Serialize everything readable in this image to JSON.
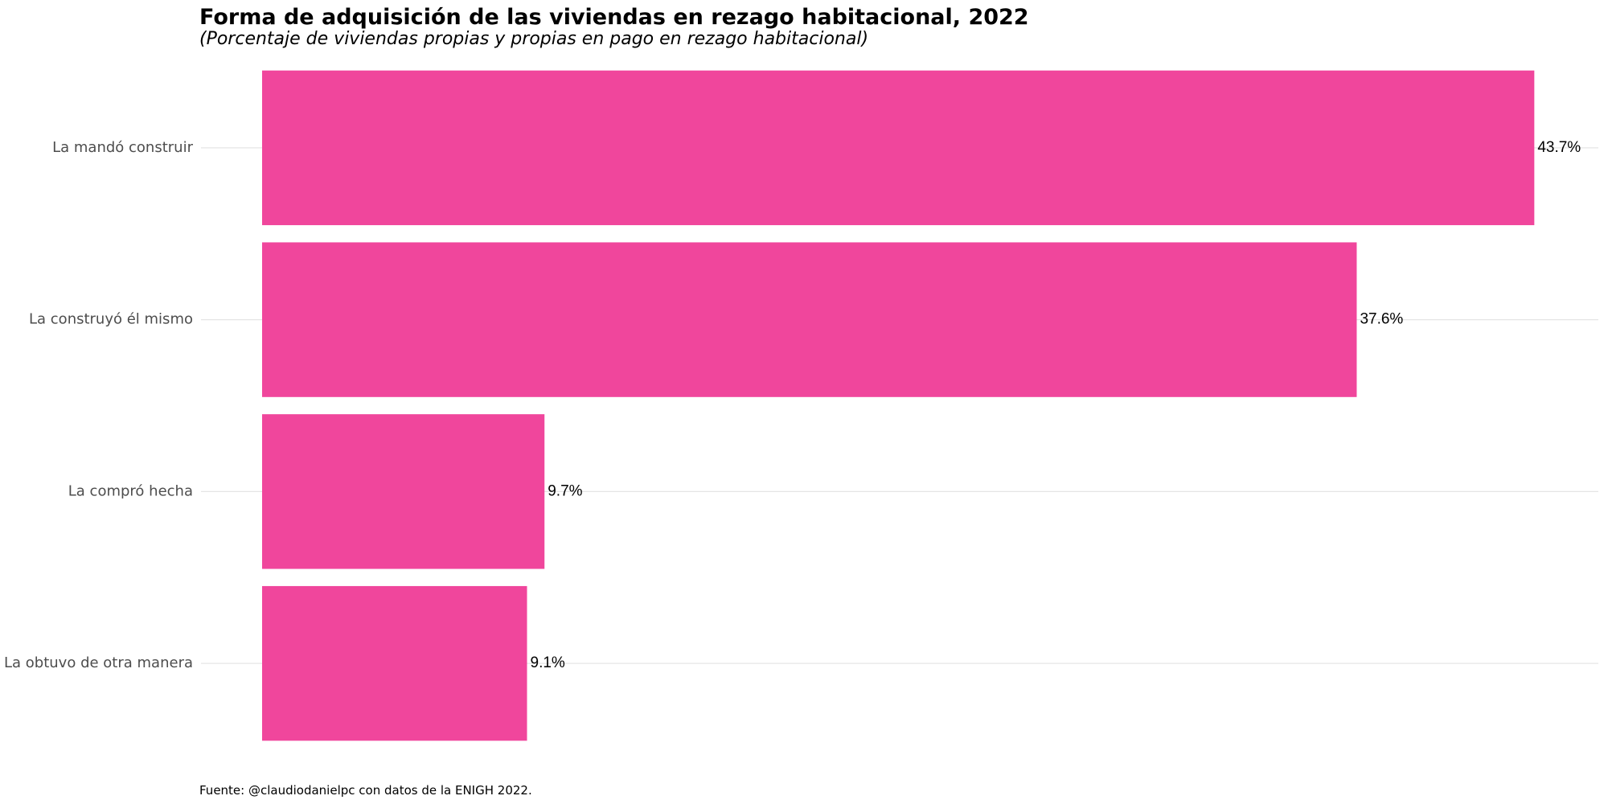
{
  "chart_data": {
    "type": "bar",
    "orientation": "horizontal",
    "title": "Forma de adquisición de las viviendas en rezago habitacional, 2022",
    "subtitle": "(Porcentaje de viviendas propias y propias en pago en rezago habitacional)",
    "caption": "Fuente: @claudiodanielpc con datos de la ENIGH 2022.",
    "categories": [
      "La mandó construir",
      "La construyó él mismo",
      "La compró hecha",
      "La obtuvo de otra manera"
    ],
    "values": [
      43.7,
      37.6,
      9.7,
      9.1
    ],
    "value_labels": [
      "43.7%",
      "37.6%",
      "9.7%",
      "9.1%"
    ],
    "xlim": [
      0,
      45.9
    ],
    "grid": "horizontal-major",
    "legend": "none",
    "colors": {
      "bar": "#f0469c",
      "gridline": "#e5e5e5",
      "category_text": "#4d4d4d",
      "value_text": "#000000"
    }
  }
}
